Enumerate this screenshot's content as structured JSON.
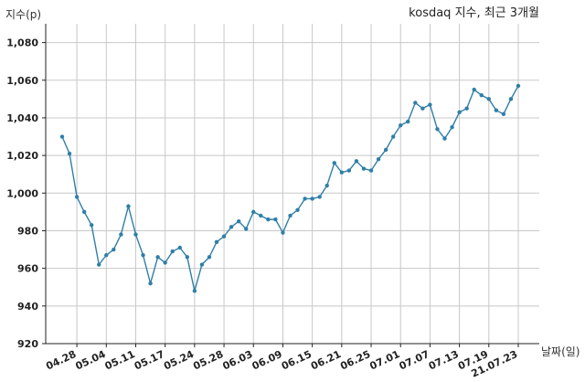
{
  "chart_data": {
    "type": "line",
    "title": "kosdaq 지수, 최근 3개월",
    "xlabel": "날짜(일)",
    "ylabel": "지수(p)",
    "ylim": [
      920,
      1090
    ],
    "y_ticks": [
      920,
      940,
      960,
      980,
      1000,
      1020,
      1040,
      1060,
      1080
    ],
    "y_tick_labels": [
      "920",
      "940",
      "960",
      "980",
      "1,000",
      "1,020",
      "1,040",
      "1,060",
      "1,080"
    ],
    "x_tick_labels": [
      "04.28",
      "05.04",
      "05.11",
      "05.17",
      "05.24",
      "05.28",
      "06.03",
      "06.09",
      "06.15",
      "06.21",
      "06.25",
      "07.01",
      "07.07",
      "07.13",
      "07.19",
      "21.07.23"
    ],
    "x_tick_positions": [
      2,
      6,
      10,
      14,
      18,
      22,
      26,
      30,
      34,
      38,
      42,
      46,
      50,
      54,
      58,
      62
    ],
    "grid": true,
    "line_color": "#2f7fa8",
    "series": [
      {
        "values": [
          1030,
          1021,
          998,
          990,
          983,
          962,
          967,
          970,
          978,
          993,
          978,
          967,
          952,
          966,
          963,
          969,
          971,
          966,
          948,
          962,
          966,
          974,
          977,
          982,
          985,
          981,
          990,
          988,
          986,
          986,
          979,
          988,
          991,
          997,
          997,
          998,
          1004,
          1016,
          1011,
          1012,
          1017,
          1013,
          1012,
          1018,
          1023,
          1030,
          1036,
          1038,
          1048,
          1045,
          1047,
          1034,
          1029,
          1035,
          1043,
          1045,
          1055,
          1052,
          1050,
          1044,
          1042,
          1050,
          1057
        ]
      }
    ]
  }
}
